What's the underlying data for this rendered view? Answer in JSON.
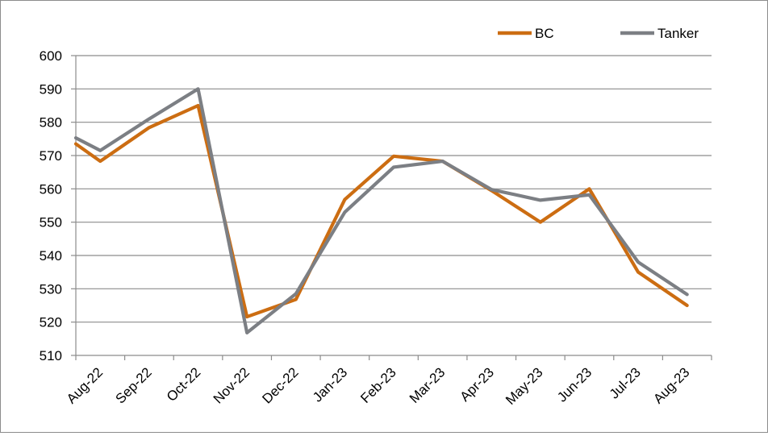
{
  "chart_data": {
    "type": "line",
    "categories": [
      "Aug-22",
      "Sep-22",
      "Oct-22",
      "Nov-22",
      "Dec-22",
      "Jan-23",
      "Feb-23",
      "Mar-23",
      "Apr-23",
      "May-23",
      "Jun-23",
      "Jul-23",
      "Aug-23"
    ],
    "series": [
      {
        "name": "BC",
        "color": "#cc6d12",
        "x": [
          0.0,
          0.5,
          1.5,
          2.5,
          3.5,
          4.5,
          5.5,
          6.5,
          7.5,
          8.5,
          9.5,
          10.5,
          11.5,
          12.5
        ],
        "values": [
          573.5,
          568.3,
          578.4,
          585.0,
          521.6,
          526.8,
          556.8,
          569.8,
          568.3,
          559.5,
          550.0,
          560.0,
          535.0,
          525.0
        ]
      },
      {
        "name": "Tanker",
        "color": "#7c7f84",
        "x": [
          0.0,
          0.5,
          1.5,
          2.5,
          3.5,
          4.5,
          5.5,
          6.5,
          7.5,
          8.5,
          9.5,
          10.5,
          11.5,
          12.5
        ],
        "values": [
          575.3,
          571.5,
          581.0,
          590.0,
          516.8,
          528.5,
          553.0,
          566.5,
          568.3,
          559.8,
          556.6,
          558.2,
          538.0,
          528.3
        ]
      }
    ],
    "y_ticks": [
      "510",
      "520",
      "530",
      "540",
      "550",
      "560",
      "570",
      "580",
      "590",
      "600"
    ],
    "ylim": [
      510,
      600
    ],
    "xlim": [
      0,
      13
    ],
    "grid": true,
    "legend_position": "top-right",
    "title": "",
    "xlabel": "",
    "ylabel": ""
  }
}
